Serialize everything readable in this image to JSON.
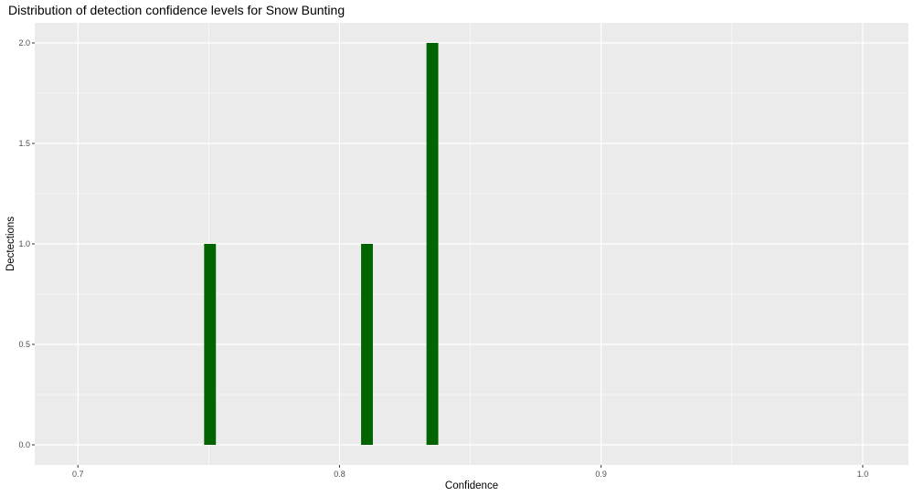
{
  "chart_data": {
    "type": "bar",
    "title": "Distribution of detection confidence levels for Snow Bunting",
    "xlabel": "Confidence",
    "ylabel": "Dectections",
    "xlim": [
      0.6835,
      1.0175
    ],
    "ylim": [
      -0.1,
      2.1
    ],
    "x_ticks": [
      0.7,
      0.8,
      0.9,
      1.0
    ],
    "x_tick_labels": [
      "0.7",
      "0.8",
      "0.9",
      "1.0"
    ],
    "y_ticks": [
      0.0,
      0.5,
      1.0,
      1.5,
      2.0
    ],
    "y_tick_labels": [
      "0.0",
      "0.5",
      "1.0",
      "1.5",
      "2.0"
    ],
    "bin_width": 0.0045,
    "bars": [
      {
        "x": 0.7505,
        "value": 1
      },
      {
        "x": 0.8105,
        "value": 1
      },
      {
        "x": 0.8355,
        "value": 2
      }
    ],
    "bar_color": "#006400",
    "panel_background": "#ebebeb",
    "grid_color": "#ffffff",
    "grid": true,
    "legend": "none"
  }
}
